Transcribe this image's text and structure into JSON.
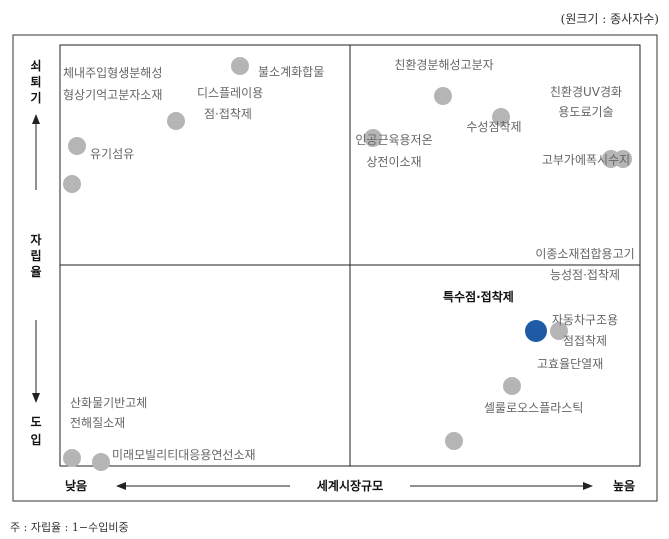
{
  "unit_note": "(원크기 : 종사자수)",
  "footnote": "주 : 자립율 : 1−수입비중",
  "chart_data": {
    "type": "scatter",
    "title": "",
    "xlabel": "세계시장규모",
    "x_low_label": "낮음",
    "x_high_label": "높음",
    "ylabel": "자립율",
    "y_high_label": "쇠퇴기",
    "y_low_label": "도입",
    "xlim": [
      0,
      1
    ],
    "ylim": [
      0,
      1
    ],
    "quadrant_dividers": {
      "x": 0.5,
      "y": 0.5
    },
    "colors": {
      "default": "#b5b5b5",
      "highlight": "#1f5aa6"
    },
    "points": [
      {
        "label": "불소계화합물",
        "x": 0.31,
        "y": 0.95,
        "highlight": false
      },
      {
        "label": "체내주입형생분해성",
        "x": 0.2,
        "y": 0.82,
        "highlight": false
      },
      {
        "label": "형상기억고분자소재",
        "x": 0.2,
        "y": 0.82,
        "highlight": false
      },
      {
        "label": "디스플레이용",
        "x": 0.2,
        "y": 0.82,
        "highlight": false
      },
      {
        "label": "점·접착제",
        "x": 0.2,
        "y": 0.82,
        "highlight": false
      },
      {
        "label": "",
        "x": 0.03,
        "y": 0.76,
        "highlight": false
      },
      {
        "label": "유기섬유",
        "x": 0.02,
        "y": 0.67,
        "highlight": false
      },
      {
        "label": "친환경분해성고분자",
        "x": 0.66,
        "y": 0.88,
        "highlight": false
      },
      {
        "label": "수성점착제",
        "x": 0.76,
        "y": 0.83,
        "highlight": false
      },
      {
        "label": "인공근육용저온",
        "x": 0.54,
        "y": 0.78,
        "highlight": false
      },
      {
        "label": "상전이소재",
        "x": 0.54,
        "y": 0.78,
        "highlight": false
      },
      {
        "label": "친환경UV경화",
        "x": 0.95,
        "y": 0.73,
        "highlight": false
      },
      {
        "label": "용도료기술",
        "x": 0.95,
        "y": 0.73,
        "highlight": false
      },
      {
        "label": "고부가에폭시수지",
        "x": 0.97,
        "y": 0.73,
        "highlight": false
      },
      {
        "label": "특수점·접착제",
        "x": 0.82,
        "y": 0.32,
        "highlight": true
      },
      {
        "label": "이종소재접합용고기능성점·접착제",
        "x": 0.86,
        "y": 0.32,
        "highlight": false
      },
      {
        "label": "자동차구조용점접착제",
        "x": 0.86,
        "y": 0.32,
        "highlight": false
      },
      {
        "label": "고효율단열재",
        "x": 0.78,
        "y": 0.19,
        "highlight": false
      },
      {
        "label": "셀룰로오스플라스틱",
        "x": 0.68,
        "y": 0.06,
        "highlight": false
      },
      {
        "label": "산화물기반고체전해질소재",
        "x": 0.02,
        "y": 0.02,
        "highlight": false
      },
      {
        "label": "미래모빌리티대응용연선소재",
        "x": 0.07,
        "y": 0.01,
        "highlight": false
      }
    ]
  }
}
